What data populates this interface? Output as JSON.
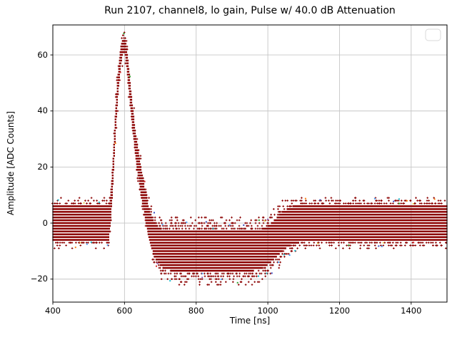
{
  "chart_data": {
    "type": "scatter",
    "title": "Run 2107, channel8, lo gain, Pulse w/ 40.0 dB Attenuation",
    "xlabel": "Time [ns]",
    "ylabel": "Amplitude [ADC Counts]",
    "xlim": [
      400,
      1500
    ],
    "ylim": [
      -28.2,
      70.7
    ],
    "x_ticks": [
      400,
      600,
      800,
      1000,
      1200,
      1400
    ],
    "x_tick_labels": [
      "400",
      "600",
      "800",
      "1000",
      "1200",
      "1400"
    ],
    "y_ticks": [
      -20,
      0,
      20,
      40,
      60
    ],
    "y_tick_labels": [
      "−20",
      "0",
      "20",
      "40",
      "60"
    ],
    "grid": true,
    "legend": {
      "visible": true,
      "entries": [],
      "position": "upper right"
    },
    "colors": {
      "marker": "#8b0000",
      "grid": "#c6c6c6",
      "spine": "#000000",
      "legend_border": "#d9d9d9",
      "background": "#ffffff",
      "outliers": [
        "#3b4cc0",
        "#ff7f0e",
        "#e6c84a",
        "#17becf",
        "#2ca02c",
        "#d62728",
        "#9467bd",
        "#4aa3ff"
      ]
    },
    "plot_description": "Persistence scatter of many overlaid ADC waveform traces drawn as dense dark-red points at integer ADC levels: flat baseline band 0±7 counts until ~555 ns, sharp positive pulse peaking ~66 counts at ~598 ns, undershoot trough centered ~-10 counts (solid -17..-3, sparse to -23) from ~715 to ~1000 ns, recovery back to baseline by ~1090 ns.",
    "pulse": {
      "peak_time_ns": 598,
      "peak_amplitude": 66,
      "baseline_band_solid": [
        -6,
        6
      ],
      "baseline_band_sparse": [
        -9,
        9
      ],
      "undershoot_solid": [
        -17,
        -3
      ],
      "undershoot_sparse_min": -23,
      "undershoot_span_ns": [
        715,
        1000
      ],
      "recovery_ns": 1090
    },
    "envelope": {
      "comment": "piecewise-linear keypoints [time_ns, ADC counts]: center of dense band, half-width of solid band, extra sparse fringe extent",
      "center": [
        [
          400,
          0
        ],
        [
          556,
          0
        ],
        [
          561,
          5
        ],
        [
          566,
          14
        ],
        [
          571,
          26
        ],
        [
          576,
          38
        ],
        [
          581,
          48
        ],
        [
          586,
          55
        ],
        [
          590,
          60
        ],
        [
          594,
          62.5
        ],
        [
          598,
          63.5
        ],
        [
          602,
          62.5
        ],
        [
          606,
          59
        ],
        [
          611,
          53
        ],
        [
          617,
          45
        ],
        [
          624,
          36
        ],
        [
          632,
          27
        ],
        [
          641,
          19
        ],
        [
          650,
          12
        ],
        [
          660,
          5
        ],
        [
          670,
          -1
        ],
        [
          682,
          -5.5
        ],
        [
          695,
          -8
        ],
        [
          710,
          -9.5
        ],
        [
          730,
          -10
        ],
        [
          960,
          -10
        ],
        [
          985,
          -9
        ],
        [
          1005,
          -7.5
        ],
        [
          1025,
          -5
        ],
        [
          1045,
          -2.5
        ],
        [
          1065,
          -1
        ],
        [
          1085,
          -0.3
        ],
        [
          1100,
          0
        ],
        [
          1500,
          0
        ]
      ],
      "halfwidth": [
        [
          400,
          6.5
        ],
        [
          552,
          6.5
        ],
        [
          562,
          5.5
        ],
        [
          580,
          4.5
        ],
        [
          598,
          2.8
        ],
        [
          612,
          4
        ],
        [
          630,
          4.5
        ],
        [
          650,
          5
        ],
        [
          670,
          5.5
        ],
        [
          690,
          6.5
        ],
        [
          715,
          7
        ],
        [
          1000,
          7
        ],
        [
          1040,
          7
        ],
        [
          1080,
          6.8
        ],
        [
          1120,
          6.5
        ],
        [
          1500,
          6.5
        ]
      ],
      "fringe": [
        [
          400,
          2.5
        ],
        [
          550,
          2.5
        ],
        [
          565,
          2
        ],
        [
          600,
          2
        ],
        [
          640,
          2.5
        ],
        [
          680,
          3.5
        ],
        [
          715,
          5
        ],
        [
          980,
          5
        ],
        [
          1020,
          4.5
        ],
        [
          1060,
          3.5
        ],
        [
          1100,
          2.5
        ],
        [
          1500,
          2.5
        ]
      ]
    }
  }
}
